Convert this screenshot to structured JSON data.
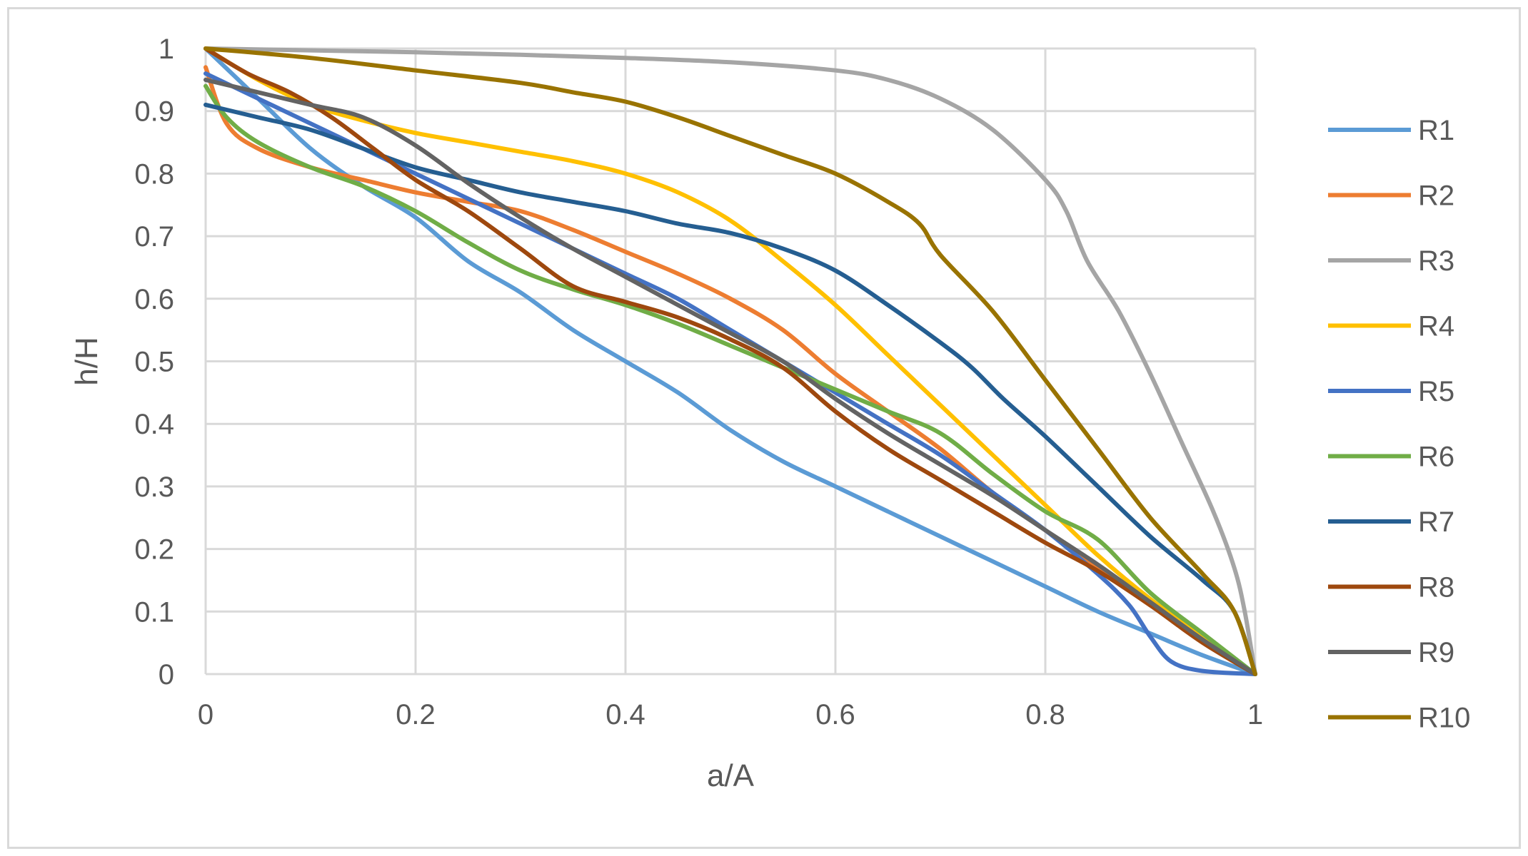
{
  "chart_data": {
    "type": "line",
    "title": "",
    "xlabel": "a/A",
    "ylabel": "h/H",
    "xlim": [
      0,
      1
    ],
    "ylim": [
      0,
      1
    ],
    "x_ticks": [
      "0",
      "0.2",
      "0.4",
      "0.6",
      "0.8",
      "1"
    ],
    "y_ticks": [
      "0",
      "0.1",
      "0.2",
      "0.3",
      "0.4",
      "0.5",
      "0.6",
      "0.7",
      "0.8",
      "0.9",
      "1"
    ],
    "grid": true,
    "legend_position": "right",
    "series": [
      {
        "name": "R1",
        "color": "#5b9bd5",
        "points": [
          [
            0,
            1
          ],
          [
            0.05,
            0.92
          ],
          [
            0.1,
            0.84
          ],
          [
            0.15,
            0.78
          ],
          [
            0.2,
            0.73
          ],
          [
            0.25,
            0.66
          ],
          [
            0.3,
            0.61
          ],
          [
            0.35,
            0.55
          ],
          [
            0.4,
            0.5
          ],
          [
            0.45,
            0.45
          ],
          [
            0.5,
            0.39
          ],
          [
            0.55,
            0.34
          ],
          [
            0.6,
            0.3
          ],
          [
            0.65,
            0.26
          ],
          [
            0.7,
            0.22
          ],
          [
            0.75,
            0.18
          ],
          [
            0.8,
            0.14
          ],
          [
            0.85,
            0.1
          ],
          [
            0.9,
            0.065
          ],
          [
            0.95,
            0.03
          ],
          [
            1,
            0
          ]
        ]
      },
      {
        "name": "R2",
        "color": "#ed7d31",
        "points": [
          [
            0,
            0.97
          ],
          [
            0.02,
            0.88
          ],
          [
            0.05,
            0.84
          ],
          [
            0.1,
            0.81
          ],
          [
            0.15,
            0.79
          ],
          [
            0.2,
            0.77
          ],
          [
            0.25,
            0.755
          ],
          [
            0.3,
            0.74
          ],
          [
            0.35,
            0.71
          ],
          [
            0.4,
            0.675
          ],
          [
            0.45,
            0.64
          ],
          [
            0.5,
            0.6
          ],
          [
            0.55,
            0.55
          ],
          [
            0.6,
            0.48
          ],
          [
            0.65,
            0.42
          ],
          [
            0.7,
            0.36
          ],
          [
            0.75,
            0.29
          ],
          [
            0.8,
            0.23
          ],
          [
            0.85,
            0.17
          ],
          [
            0.9,
            0.11
          ],
          [
            0.95,
            0.06
          ],
          [
            1,
            0
          ]
        ]
      },
      {
        "name": "R3",
        "color": "#a5a5a5",
        "points": [
          [
            0,
            1
          ],
          [
            0.1,
            0.997
          ],
          [
            0.2,
            0.994
          ],
          [
            0.3,
            0.99
          ],
          [
            0.4,
            0.985
          ],
          [
            0.5,
            0.978
          ],
          [
            0.6,
            0.965
          ],
          [
            0.65,
            0.95
          ],
          [
            0.7,
            0.92
          ],
          [
            0.75,
            0.87
          ],
          [
            0.8,
            0.79
          ],
          [
            0.82,
            0.74
          ],
          [
            0.84,
            0.66
          ],
          [
            0.87,
            0.58
          ],
          [
            0.9,
            0.48
          ],
          [
            0.93,
            0.37
          ],
          [
            0.96,
            0.26
          ],
          [
            0.98,
            0.17
          ],
          [
            0.99,
            0.1
          ],
          [
            1,
            0
          ]
        ]
      },
      {
        "name": "R4",
        "color": "#ffc000",
        "points": [
          [
            0,
            1
          ],
          [
            0.05,
            0.95
          ],
          [
            0.1,
            0.91
          ],
          [
            0.15,
            0.885
          ],
          [
            0.2,
            0.865
          ],
          [
            0.25,
            0.85
          ],
          [
            0.3,
            0.835
          ],
          [
            0.35,
            0.82
          ],
          [
            0.4,
            0.8
          ],
          [
            0.45,
            0.77
          ],
          [
            0.5,
            0.725
          ],
          [
            0.55,
            0.66
          ],
          [
            0.6,
            0.59
          ],
          [
            0.65,
            0.51
          ],
          [
            0.7,
            0.43
          ],
          [
            0.75,
            0.35
          ],
          [
            0.8,
            0.27
          ],
          [
            0.85,
            0.19
          ],
          [
            0.9,
            0.12
          ],
          [
            0.95,
            0.06
          ],
          [
            1,
            0
          ]
        ]
      },
      {
        "name": "R5",
        "color": "#4472c4",
        "points": [
          [
            0,
            0.96
          ],
          [
            0.05,
            0.92
          ],
          [
            0.1,
            0.88
          ],
          [
            0.15,
            0.84
          ],
          [
            0.2,
            0.8
          ],
          [
            0.25,
            0.76
          ],
          [
            0.3,
            0.72
          ],
          [
            0.35,
            0.68
          ],
          [
            0.4,
            0.64
          ],
          [
            0.45,
            0.6
          ],
          [
            0.5,
            0.55
          ],
          [
            0.55,
            0.5
          ],
          [
            0.6,
            0.45
          ],
          [
            0.65,
            0.4
          ],
          [
            0.7,
            0.35
          ],
          [
            0.75,
            0.29
          ],
          [
            0.8,
            0.23
          ],
          [
            0.85,
            0.16
          ],
          [
            0.88,
            0.11
          ],
          [
            0.9,
            0.06
          ],
          [
            0.92,
            0.02
          ],
          [
            0.95,
            0.005
          ],
          [
            1,
            0
          ]
        ]
      },
      {
        "name": "R6",
        "color": "#70ad47",
        "points": [
          [
            0,
            0.94
          ],
          [
            0.02,
            0.89
          ],
          [
            0.05,
            0.85
          ],
          [
            0.1,
            0.81
          ],
          [
            0.15,
            0.78
          ],
          [
            0.2,
            0.74
          ],
          [
            0.25,
            0.69
          ],
          [
            0.3,
            0.645
          ],
          [
            0.35,
            0.615
          ],
          [
            0.4,
            0.59
          ],
          [
            0.45,
            0.56
          ],
          [
            0.5,
            0.525
          ],
          [
            0.55,
            0.49
          ],
          [
            0.6,
            0.455
          ],
          [
            0.65,
            0.42
          ],
          [
            0.7,
            0.385
          ],
          [
            0.75,
            0.32
          ],
          [
            0.8,
            0.26
          ],
          [
            0.85,
            0.215
          ],
          [
            0.9,
            0.13
          ],
          [
            0.95,
            0.065
          ],
          [
            1,
            0
          ]
        ]
      },
      {
        "name": "R7",
        "color": "#255e91",
        "points": [
          [
            0,
            0.91
          ],
          [
            0.05,
            0.89
          ],
          [
            0.1,
            0.87
          ],
          [
            0.15,
            0.84
          ],
          [
            0.2,
            0.81
          ],
          [
            0.25,
            0.79
          ],
          [
            0.3,
            0.77
          ],
          [
            0.35,
            0.755
          ],
          [
            0.4,
            0.74
          ],
          [
            0.45,
            0.72
          ],
          [
            0.5,
            0.705
          ],
          [
            0.55,
            0.68
          ],
          [
            0.6,
            0.645
          ],
          [
            0.65,
            0.59
          ],
          [
            0.7,
            0.53
          ],
          [
            0.73,
            0.49
          ],
          [
            0.76,
            0.44
          ],
          [
            0.8,
            0.38
          ],
          [
            0.85,
            0.3
          ],
          [
            0.9,
            0.22
          ],
          [
            0.95,
            0.15
          ],
          [
            0.98,
            0.1
          ],
          [
            1,
            0
          ]
        ]
      },
      {
        "name": "R8",
        "color": "#9e480e",
        "points": [
          [
            0,
            1
          ],
          [
            0.04,
            0.96
          ],
          [
            0.08,
            0.93
          ],
          [
            0.12,
            0.89
          ],
          [
            0.16,
            0.84
          ],
          [
            0.2,
            0.79
          ],
          [
            0.25,
            0.74
          ],
          [
            0.3,
            0.68
          ],
          [
            0.35,
            0.62
          ],
          [
            0.4,
            0.595
          ],
          [
            0.45,
            0.57
          ],
          [
            0.5,
            0.535
          ],
          [
            0.55,
            0.49
          ],
          [
            0.6,
            0.42
          ],
          [
            0.65,
            0.36
          ],
          [
            0.7,
            0.31
          ],
          [
            0.75,
            0.26
          ],
          [
            0.8,
            0.21
          ],
          [
            0.85,
            0.165
          ],
          [
            0.9,
            0.11
          ],
          [
            0.95,
            0.05
          ],
          [
            1,
            0
          ]
        ]
      },
      {
        "name": "R9",
        "color": "#636363",
        "points": [
          [
            0,
            0.95
          ],
          [
            0.05,
            0.93
          ],
          [
            0.1,
            0.91
          ],
          [
            0.15,
            0.89
          ],
          [
            0.2,
            0.845
          ],
          [
            0.25,
            0.785
          ],
          [
            0.3,
            0.73
          ],
          [
            0.35,
            0.68
          ],
          [
            0.4,
            0.635
          ],
          [
            0.45,
            0.59
          ],
          [
            0.5,
            0.545
          ],
          [
            0.55,
            0.5
          ],
          [
            0.6,
            0.44
          ],
          [
            0.65,
            0.385
          ],
          [
            0.7,
            0.335
          ],
          [
            0.75,
            0.285
          ],
          [
            0.8,
            0.23
          ],
          [
            0.85,
            0.175
          ],
          [
            0.9,
            0.115
          ],
          [
            0.95,
            0.055
          ],
          [
            1,
            0
          ]
        ]
      },
      {
        "name": "R10",
        "color": "#997300",
        "points": [
          [
            0,
            1
          ],
          [
            0.1,
            0.985
          ],
          [
            0.2,
            0.965
          ],
          [
            0.3,
            0.945
          ],
          [
            0.35,
            0.93
          ],
          [
            0.4,
            0.915
          ],
          [
            0.45,
            0.89
          ],
          [
            0.5,
            0.86
          ],
          [
            0.55,
            0.83
          ],
          [
            0.6,
            0.8
          ],
          [
            0.65,
            0.755
          ],
          [
            0.68,
            0.72
          ],
          [
            0.7,
            0.67
          ],
          [
            0.75,
            0.58
          ],
          [
            0.8,
            0.47
          ],
          [
            0.85,
            0.36
          ],
          [
            0.9,
            0.25
          ],
          [
            0.95,
            0.16
          ],
          [
            0.98,
            0.1
          ],
          [
            1,
            0
          ]
        ]
      }
    ]
  }
}
